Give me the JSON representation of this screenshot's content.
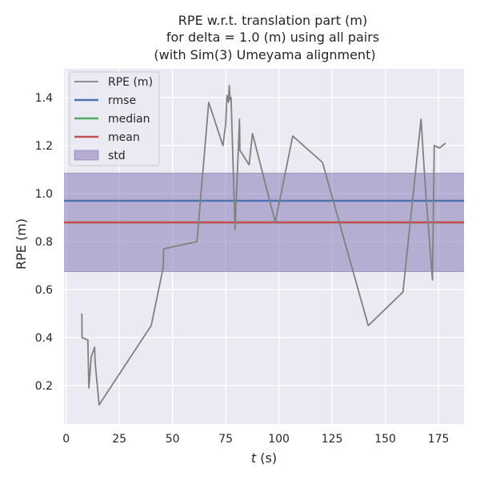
{
  "chart_data": {
    "type": "line",
    "title_lines": [
      "RPE w.r.t. translation part (m)",
      "for delta = 1.0 (m) using all pairs",
      "(with Sim(3) Umeyama alignment)"
    ],
    "xlabel_italic": "t",
    "xlabel_rest": " (s)",
    "ylabel": "RPE (m)",
    "xlim": [
      -1,
      187
    ],
    "ylim": [
      0.04,
      1.52
    ],
    "xticks": [
      0,
      25,
      50,
      75,
      100,
      125,
      150,
      175
    ],
    "yticks": [
      0.2,
      0.4,
      0.6,
      0.8,
      1.0,
      1.2,
      1.4
    ],
    "ytick_labels": [
      "0.2",
      "0.4",
      "0.6",
      "0.8",
      "1.0",
      "1.2",
      "1.4"
    ],
    "grid": true,
    "legend_position": "top-left",
    "series": [
      {
        "name": "RPE (m)",
        "color": "#808080",
        "x": [
          7.4,
          7.5,
          10.2,
          10.7,
          11.8,
          13.4,
          13.6,
          15.5,
          40.0,
          45.6,
          45.9,
          61.5,
          67.0,
          73.7,
          75.0,
          75.6,
          76.3,
          76.7,
          77.1,
          77.5,
          79.4,
          81.0,
          81.5,
          81.7,
          86.0,
          87.6,
          98.3,
          106.5,
          120.5,
          142.0,
          158.3,
          166.8,
          168.8,
          172.2,
          173.0,
          175.5,
          178.3
        ],
        "y": [
          0.5,
          0.4,
          0.39,
          0.19,
          0.32,
          0.36,
          0.3,
          0.12,
          0.45,
          0.69,
          0.77,
          0.8,
          1.38,
          1.2,
          1.29,
          1.41,
          1.38,
          1.45,
          1.39,
          1.4,
          0.85,
          1.2,
          1.31,
          1.18,
          1.12,
          1.25,
          0.88,
          1.24,
          1.13,
          0.45,
          0.59,
          1.31,
          1.03,
          0.64,
          1.2,
          1.19,
          1.21
        ]
      }
    ],
    "stats": {
      "rmse": 0.97,
      "median": 0.88,
      "mean": 0.88,
      "std_low": 0.675,
      "std_high": 1.085
    },
    "legend": [
      {
        "label": "RPE (m)",
        "kind": "line",
        "color": "#808080"
      },
      {
        "label": "rmse",
        "kind": "line",
        "color": "#4c72b0"
      },
      {
        "label": "median",
        "kind": "line",
        "color": "#55a868"
      },
      {
        "label": "mean",
        "kind": "line",
        "color": "#c44e52"
      },
      {
        "label": "std",
        "kind": "patch",
        "color": "#8172b2"
      }
    ],
    "colors": {
      "plot_bg": "#eaeaf2",
      "grid": "#ffffff",
      "rmse": "#4c72b0",
      "median": "#55a868",
      "mean": "#c44e52",
      "std_fill": "#8172b2"
    }
  }
}
